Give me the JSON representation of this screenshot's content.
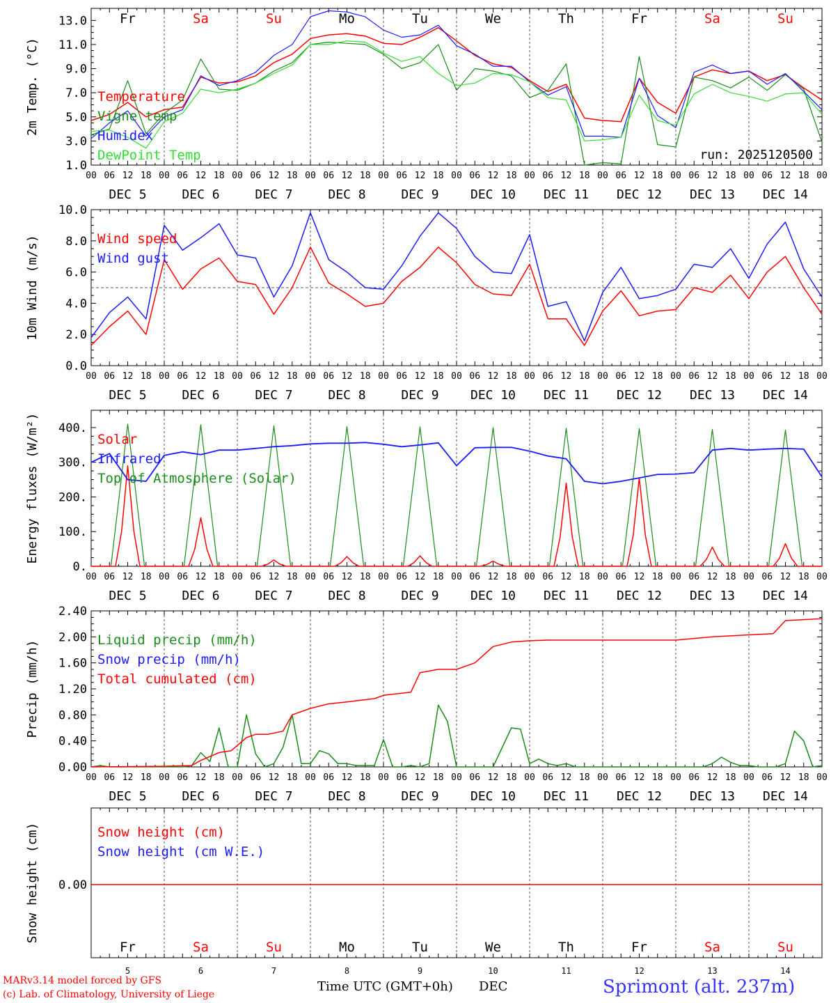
{
  "colors": {
    "red": "#ff0000",
    "green": "#1a8c1a",
    "blue": "#1a1aff",
    "light_green": "#33dd33",
    "axis": "#000000",
    "grid": "#555555",
    "title": "#3333ff"
  },
  "days": {
    "names": [
      "Fr",
      "Sa",
      "Su",
      "Mo",
      "Tu",
      "We",
      "Th",
      "Fr",
      "Sa",
      "Su"
    ],
    "weekend_flags": [
      false,
      true,
      true,
      false,
      false,
      false,
      false,
      false,
      true,
      true
    ],
    "dates": [
      "DEC  5",
      "DEC  6",
      "DEC  7",
      "DEC  8",
      "DEC  9",
      "DEC 10",
      "DEC 11",
      "DEC 12",
      "DEC 13",
      "DEC 14"
    ],
    "numbers": [
      "5",
      "6",
      "7",
      "8",
      "9",
      "10",
      "11",
      "12",
      "13",
      "14"
    ],
    "hour_labels": [
      "00",
      "06",
      "12",
      "18"
    ]
  },
  "footer": {
    "model": "MARv3.14 model forced by GFS",
    "copyright": "(c) Lab. of Climatology, University of Liege",
    "time_axis": "Time UTC (GMT+0h)",
    "month": "DEC",
    "station": "Sprimont (alt. 237m)"
  },
  "chart_data": [
    {
      "type": "line",
      "id": "temp",
      "ylabel": "2m Temp. (°C)",
      "ylim": [
        1.0,
        14.0
      ],
      "yticks": [
        "1.0",
        "3.0",
        "5.0",
        "7.0",
        "9.0",
        "11.0",
        "13.0"
      ],
      "ytick_values": [
        1,
        3,
        5,
        7,
        9,
        11,
        13
      ],
      "annotation": "run: 2025120500",
      "x_hours": [
        0,
        6,
        12,
        18,
        24,
        30,
        36,
        42,
        48,
        54,
        60,
        66,
        72,
        78,
        84,
        90,
        96,
        102,
        108,
        114,
        120,
        126,
        132,
        138,
        144,
        150,
        156,
        162,
        168,
        174,
        180,
        186,
        192,
        198,
        204,
        210,
        216,
        222,
        228,
        234,
        240
      ],
      "series": [
        {
          "name": "Temperature",
          "color": "red",
          "values": [
            4.7,
            5.2,
            6.2,
            5.0,
            5.6,
            5.8,
            8.3,
            7.8,
            7.9,
            8.4,
            9.5,
            10.2,
            11.5,
            11.8,
            11.9,
            11.7,
            11.1,
            11.0,
            11.6,
            12.4,
            11.3,
            10.1,
            9.4,
            9.1,
            8.0,
            7.1,
            7.7,
            4.9,
            4.7,
            4.6,
            8.2,
            6.2,
            5.3,
            8.3,
            8.9,
            8.6,
            8.8,
            8.0,
            8.5,
            7.4,
            6.4
          ]
        },
        {
          "name": "Vigne temp",
          "color": "green",
          "values": [
            3.5,
            4.0,
            8.0,
            3.6,
            5.3,
            6.4,
            9.8,
            7.3,
            7.2,
            7.8,
            8.8,
            9.5,
            11.0,
            11.2,
            11.1,
            11.0,
            10.2,
            9.0,
            9.5,
            11.0,
            7.2,
            9.0,
            8.8,
            8.4,
            6.6,
            7.2,
            9.4,
            1.0,
            1.2,
            1.1,
            10.0,
            2.7,
            2.5,
            8.3,
            8.0,
            7.4,
            8.3,
            7.2,
            8.5,
            7.3,
            2.9
          ]
        },
        {
          "name": "Humidex",
          "color": "blue",
          "values": [
            3.2,
            4.5,
            5.5,
            3.4,
            5.0,
            5.6,
            8.4,
            7.6,
            8.0,
            8.7,
            10.1,
            11.0,
            13.3,
            13.8,
            13.7,
            13.3,
            12.2,
            11.6,
            11.8,
            12.6,
            10.9,
            10.2,
            9.2,
            9.2,
            7.9,
            6.8,
            7.5,
            3.4,
            3.4,
            3.3,
            8.2,
            5.1,
            4.1,
            8.7,
            9.3,
            8.6,
            8.8,
            7.7,
            8.6,
            7.1,
            5.6
          ]
        },
        {
          "name": "DewPoint Temp",
          "color": "light_green",
          "values": [
            3.8,
            3.9,
            3.3,
            2.4,
            4.6,
            5.3,
            7.3,
            7.0,
            7.3,
            7.8,
            8.6,
            9.3,
            11.0,
            11.0,
            11.3,
            11.2,
            10.3,
            9.6,
            10.0,
            8.6,
            7.6,
            7.8,
            8.6,
            8.5,
            7.9,
            6.6,
            6.4,
            3.0,
            3.1,
            3.3,
            6.8,
            4.7,
            4.3,
            6.9,
            7.7,
            7.0,
            6.7,
            6.3,
            6.9,
            7.0,
            5.2
          ]
        }
      ]
    },
    {
      "type": "line",
      "id": "wind",
      "ylabel": "10m Wind (m/s)",
      "ylim": [
        0.0,
        10.0
      ],
      "yticks": [
        "0.0",
        "2.0",
        "4.0",
        "6.0",
        "8.0",
        "10.0"
      ],
      "ytick_values": [
        0,
        2,
        4,
        6,
        8,
        10
      ],
      "reference_line": 5.0,
      "x_hours": [
        0,
        6,
        12,
        18,
        24,
        30,
        36,
        42,
        48,
        54,
        60,
        66,
        72,
        78,
        84,
        90,
        96,
        102,
        108,
        114,
        120,
        126,
        132,
        138,
        144,
        150,
        156,
        162,
        168,
        174,
        180,
        186,
        192,
        198,
        204,
        210,
        216,
        222,
        228,
        234,
        240
      ],
      "series": [
        {
          "name": "Wind speed",
          "color": "red",
          "values": [
            1.3,
            2.5,
            3.5,
            2.0,
            6.8,
            4.9,
            6.2,
            6.9,
            5.4,
            5.2,
            3.3,
            5.0,
            7.6,
            5.3,
            4.6,
            3.8,
            4.0,
            5.4,
            6.3,
            7.6,
            6.6,
            5.2,
            4.6,
            4.5,
            6.5,
            3.0,
            3.0,
            1.3,
            3.5,
            4.8,
            3.2,
            3.5,
            3.6,
            5.0,
            4.7,
            5.8,
            4.3,
            6.0,
            7.0,
            5.0,
            3.3
          ]
        },
        {
          "name": "Wind gust",
          "color": "blue",
          "values": [
            1.8,
            3.4,
            4.4,
            3.0,
            9.0,
            7.4,
            8.2,
            9.1,
            7.1,
            6.9,
            4.4,
            6.4,
            9.8,
            6.8,
            6.0,
            5.0,
            4.9,
            6.4,
            8.3,
            9.8,
            8.8,
            7.0,
            6.0,
            5.9,
            8.4,
            3.8,
            4.1,
            1.6,
            4.7,
            6.3,
            4.3,
            4.5,
            4.9,
            6.5,
            6.3,
            7.5,
            5.6,
            7.8,
            9.2,
            6.2,
            4.4
          ]
        }
      ]
    },
    {
      "type": "line",
      "id": "energy",
      "ylabel": "Energy fluxes (W/m²)",
      "ylim": [
        0,
        450
      ],
      "yticks": [
        "0.",
        "100.",
        "200.",
        "300.",
        "400."
      ],
      "ytick_values": [
        0,
        100,
        200,
        300,
        400
      ],
      "series": [
        {
          "name": "Solar",
          "color": "red",
          "peaks": [
            290,
            140,
            18,
            28,
            30,
            15,
            240,
            255,
            55,
            65
          ]
        },
        {
          "name": "Infrared",
          "color": "blue",
          "x_hours": [
            0,
            6,
            12,
            18,
            24,
            30,
            36,
            42,
            48,
            54,
            60,
            66,
            72,
            78,
            84,
            90,
            96,
            102,
            108,
            114,
            120,
            126,
            132,
            138,
            144,
            150,
            156,
            162,
            168,
            174,
            180,
            186,
            192,
            198,
            204,
            210,
            216,
            222,
            228,
            234,
            240
          ],
          "values": [
            300,
            325,
            250,
            245,
            320,
            330,
            322,
            335,
            335,
            340,
            345,
            348,
            353,
            355,
            355,
            357,
            352,
            345,
            350,
            356,
            290,
            342,
            343,
            343,
            332,
            318,
            310,
            245,
            238,
            245,
            255,
            265,
            266,
            270,
            335,
            340,
            335,
            338,
            340,
            338,
            258
          ]
        },
        {
          "name": "Top of Atmosphere (Solar)",
          "color": "green",
          "peaks": [
            410,
            408,
            405,
            403,
            402,
            400,
            398,
            397,
            395,
            393
          ]
        }
      ]
    },
    {
      "type": "line",
      "id": "precip",
      "ylabel": "Precip (mm/h)",
      "ylim": [
        0.0,
        2.4
      ],
      "yticks": [
        "0.00",
        "0.40",
        "0.80",
        "1.20",
        "1.60",
        "2.00",
        "2.40"
      ],
      "ytick_values": [
        0,
        0.4,
        0.8,
        1.2,
        1.6,
        2.0,
        2.4
      ],
      "series": [
        {
          "name": "Liquid precip (mm/h)",
          "color": "green",
          "x_hours": [
            0,
            3,
            6,
            9,
            12,
            15,
            18,
            21,
            24,
            27,
            30,
            33,
            36,
            39,
            42,
            45,
            48,
            51,
            54,
            57,
            60,
            63,
            66,
            69,
            72,
            75,
            78,
            81,
            84,
            87,
            90,
            93,
            96,
            99,
            102,
            105,
            108,
            111,
            114,
            117,
            120,
            123,
            126,
            129,
            132,
            135,
            138,
            141,
            144,
            147,
            150,
            153,
            156,
            159,
            162,
            165,
            168,
            171,
            174,
            177,
            180,
            183,
            186,
            189,
            192,
            195,
            198,
            201,
            204,
            207,
            210,
            213,
            216,
            219,
            222,
            225,
            228,
            231,
            234,
            237,
            240
          ],
          "values": [
            0.0,
            0.02,
            0.0,
            0.0,
            0.0,
            0.0,
            0.0,
            0.0,
            0.0,
            0.0,
            0.0,
            0.02,
            0.22,
            0.08,
            0.6,
            0.0,
            0.0,
            0.8,
            0.2,
            0.0,
            0.05,
            0.3,
            0.8,
            0.05,
            0.05,
            0.25,
            0.2,
            0.05,
            0.05,
            0.02,
            0.02,
            0.02,
            0.42,
            0.0,
            0.0,
            0.02,
            0.0,
            0.05,
            0.95,
            0.7,
            0.0,
            0.0,
            0.0,
            0.0,
            0.0,
            0.3,
            0.6,
            0.58,
            0.05,
            0.12,
            0.05,
            0.02,
            0.05,
            0.0,
            0.0,
            0.0,
            0.0,
            0.0,
            0.0,
            0.0,
            0.0,
            0.0,
            0.0,
            0.0,
            0.0,
            0.0,
            0.0,
            0.0,
            0.05,
            0.15,
            0.07,
            0.02,
            0.02,
            0.0,
            0.0,
            0.0,
            0.05,
            0.55,
            0.4,
            0.0,
            0.02
          ]
        },
        {
          "name": "Snow precip (mm/h)",
          "color": "blue",
          "x_hours": [],
          "values": []
        },
        {
          "name": "Total cumulated (cm)",
          "color": "red",
          "x_hours": [
            0,
            24,
            33,
            36,
            42,
            46,
            51,
            54,
            58,
            63,
            66,
            72,
            78,
            84,
            93,
            96,
            105,
            108,
            114,
            120,
            126,
            132,
            138,
            144,
            150,
            168,
            192,
            204,
            216,
            224,
            228,
            240
          ],
          "values": [
            0.0,
            0.01,
            0.02,
            0.1,
            0.22,
            0.25,
            0.45,
            0.5,
            0.5,
            0.55,
            0.8,
            0.9,
            0.97,
            1.0,
            1.05,
            1.1,
            1.15,
            1.45,
            1.5,
            1.5,
            1.6,
            1.85,
            1.92,
            1.94,
            1.95,
            1.95,
            1.95,
            2.0,
            2.03,
            2.05,
            2.25,
            2.28
          ]
        }
      ]
    },
    {
      "type": "line",
      "id": "snow",
      "ylabel": "Snow height (cm)",
      "ytick_label": "0.00",
      "series": [
        {
          "name": "Snow height (cm)",
          "color": "red",
          "values": [
            0.0,
            0.0
          ]
        },
        {
          "name": "Snow height (cm W.E.)",
          "color": "blue",
          "values": []
        }
      ]
    }
  ]
}
